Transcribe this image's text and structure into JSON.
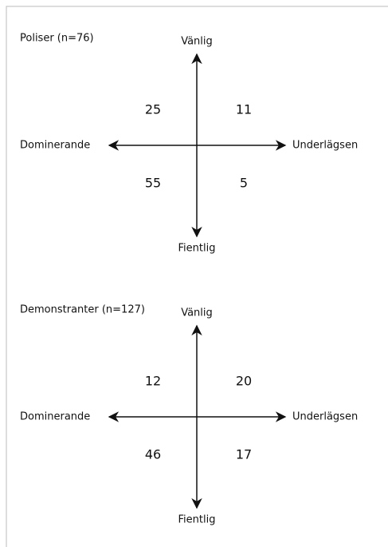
{
  "panels": [
    {
      "title": "Poliser (n=76)",
      "top": "Vänlig",
      "bottom": "Fientlig",
      "left": "Dominerande",
      "right": "Underlägsen",
      "quadrants": {
        "top_left": 25,
        "top_right": 11,
        "bottom_left": 55,
        "bottom_right": 5
      }
    },
    {
      "title": "Demonstranter (n=127)",
      "top": "Vänlig",
      "bottom": "Fientlig",
      "left": "Dominerande",
      "right": "Underlägsen",
      "quadrants": {
        "top_left": 12,
        "top_right": 20,
        "bottom_left": 46,
        "bottom_right": 17
      }
    }
  ]
}
